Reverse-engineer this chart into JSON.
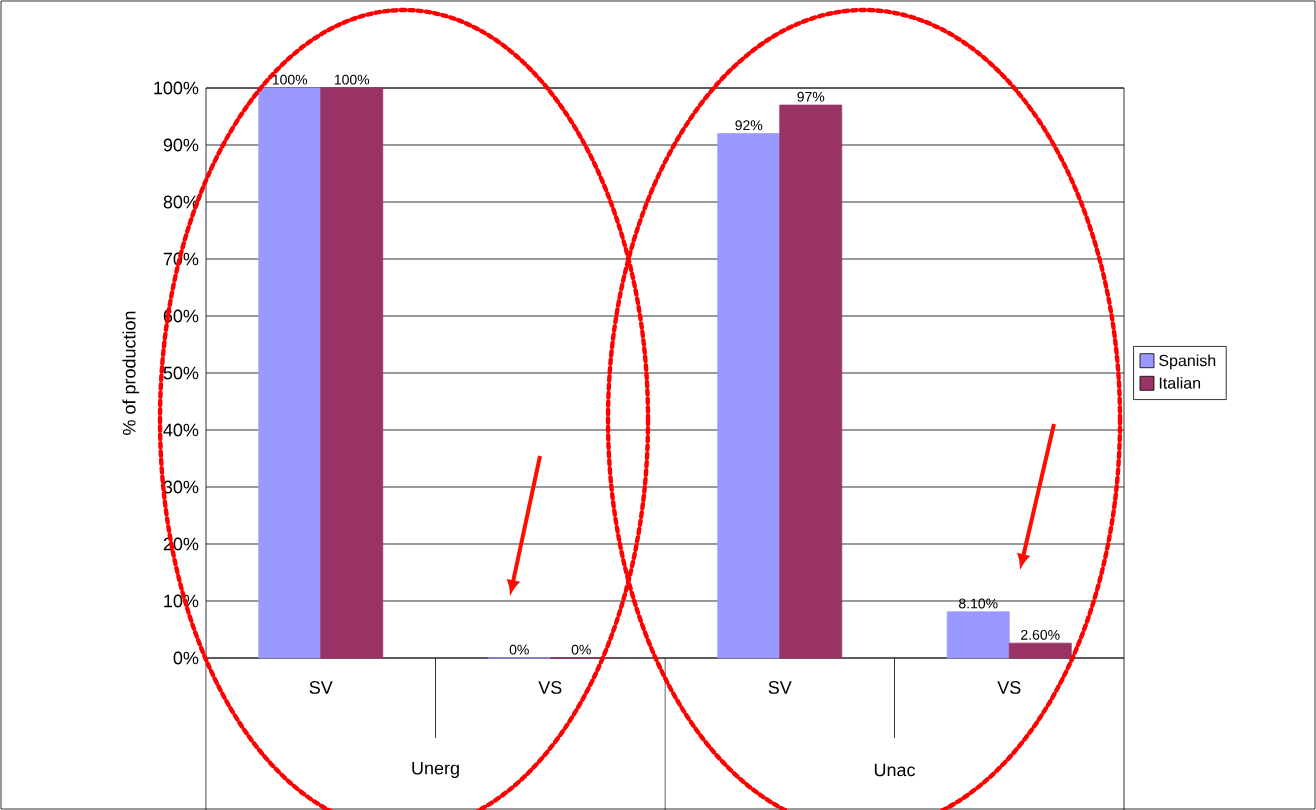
{
  "chart_data": {
    "type": "bar",
    "ylabel": "% of production",
    "categories": [
      "SV",
      "VS",
      "SV",
      "VS"
    ],
    "series": [
      {
        "name": "Spanish",
        "color": "#9999ff",
        "values": [
          100,
          0,
          92,
          8.1
        ],
        "value_labels": [
          "100%",
          "0%",
          "92%",
          "8.10%"
        ]
      },
      {
        "name": "Italian",
        "color": "#993366",
        "values": [
          100,
          0,
          97,
          2.6
        ],
        "value_labels": [
          "100%",
          "0%",
          "97%",
          "2.60%"
        ]
      }
    ],
    "annotations": [
      "Unerg",
      "Unac"
    ],
    "ylim": [
      0,
      100
    ],
    "yticks": [
      {
        "value": 0,
        "label": "0%"
      },
      {
        "value": 10,
        "label": "10%"
      },
      {
        "value": 20,
        "label": "20%"
      },
      {
        "value": 30,
        "label": "30%"
      },
      {
        "value": 40,
        "label": "40%"
      },
      {
        "value": 50,
        "label": "50%"
      },
      {
        "value": 60,
        "label": "60%"
      },
      {
        "value": 70,
        "label": "70%"
      },
      {
        "value": 80,
        "label": "80%"
      },
      {
        "value": 90,
        "label": "90%"
      },
      {
        "value": 100,
        "label": "100%"
      }
    ],
    "grid": "y",
    "legend": "right"
  }
}
